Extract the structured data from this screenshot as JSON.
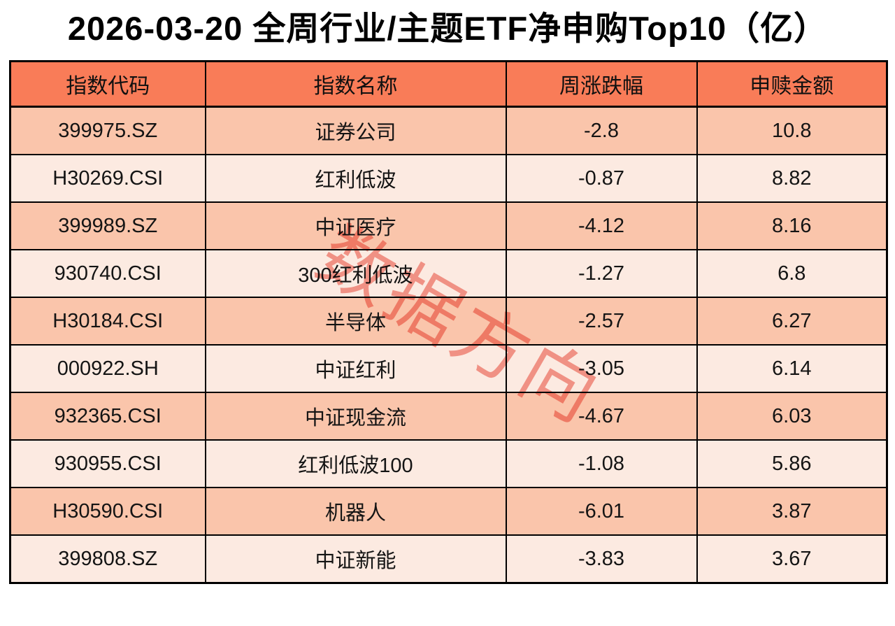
{
  "title": "2026-03-20 全周行业/主题ETF净申购Top10（亿）",
  "watermark": {
    "text": "数据方向",
    "color": "#E94F3F"
  },
  "colors": {
    "header_bg": "#F97C58",
    "row_odd_bg": "#FAC5AB",
    "row_even_bg": "#FCEAE1",
    "border": "#000000",
    "title_text": "#000000",
    "cell_text": "#141414",
    "page_bg": "#FFFFFF"
  },
  "chart_data": {
    "type": "table",
    "title": "2026-03-20 全周行业/主题ETF净申购Top10（亿）",
    "columns": [
      "指数代码",
      "指数名称",
      "周涨跌幅",
      "申赎金额"
    ],
    "rows": [
      [
        "399975.SZ",
        "证券公司",
        "-2.8",
        "10.8"
      ],
      [
        "H30269.CSI",
        "红利低波",
        "-0.87",
        "8.82"
      ],
      [
        "399989.SZ",
        "中证医疗",
        "-4.12",
        "8.16"
      ],
      [
        "930740.CSI",
        "300红利低波",
        "-1.27",
        "6.8"
      ],
      [
        "H30184.CSI",
        "半导体",
        "-2.57",
        "6.27"
      ],
      [
        "000922.SH",
        "中证红利",
        "-3.05",
        "6.14"
      ],
      [
        "932365.CSI",
        "中证现金流",
        "-4.67",
        "6.03"
      ],
      [
        "930955.CSI",
        "红利低波100",
        "-1.08",
        "5.86"
      ],
      [
        "H30590.CSI",
        "机器人",
        "-6.01",
        "3.87"
      ],
      [
        "399808.SZ",
        "中证新能",
        "-3.83",
        "3.67"
      ]
    ],
    "numeric": {
      "index_names": [
        "证券公司",
        "红利低波",
        "中证医疗",
        "300红利低波",
        "半导体",
        "中证红利",
        "中证现金流",
        "红利低波100",
        "机器人",
        "中证新能"
      ],
      "weekly_change_pct": [
        -2.8,
        -0.87,
        -4.12,
        -1.27,
        -2.57,
        -3.05,
        -4.67,
        -1.08,
        -6.01,
        -3.83
      ],
      "net_subscription_yi": [
        10.8,
        8.82,
        8.16,
        6.8,
        6.27,
        6.14,
        6.03,
        5.86,
        3.87,
        3.67
      ]
    },
    "layout": {
      "header_fill": "#F97C58",
      "alternating_row_fills": [
        "#FAC5AB",
        "#FCEAE1"
      ],
      "grid": true
    }
  }
}
